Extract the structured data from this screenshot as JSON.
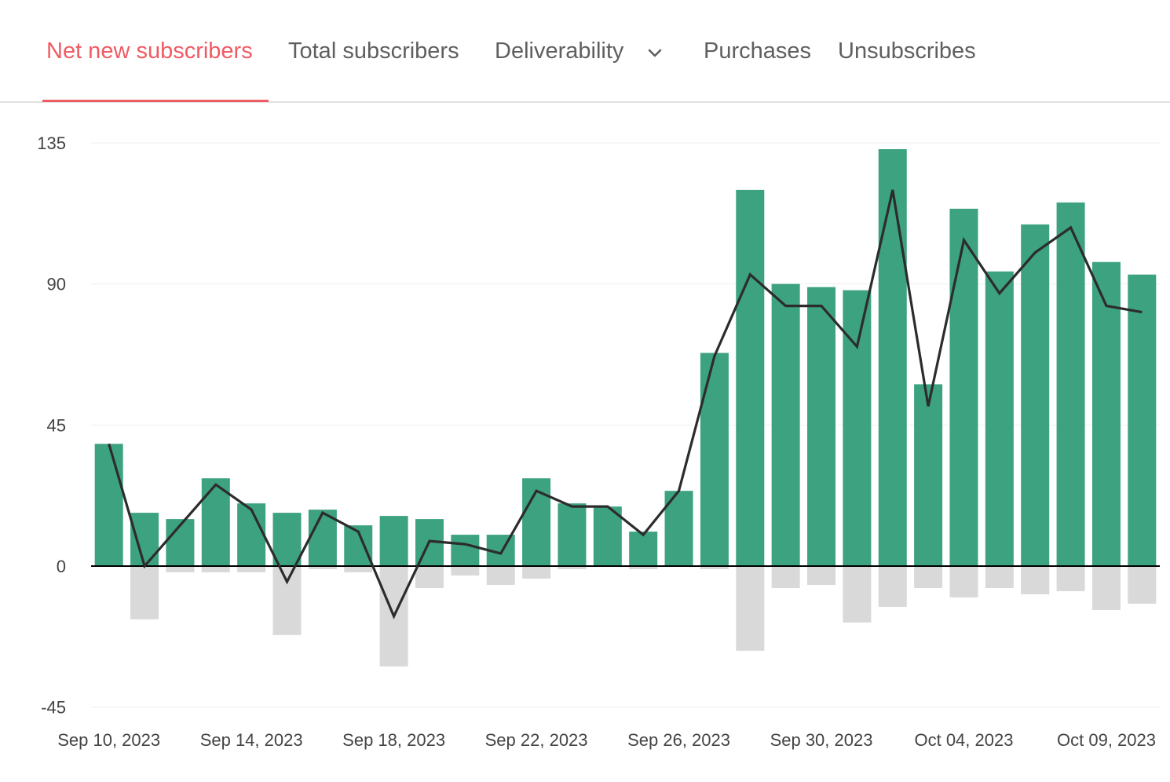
{
  "tabs": {
    "items": [
      {
        "label": "Net new subscribers",
        "active": true
      },
      {
        "label": "Total subscribers",
        "active": false
      },
      {
        "label": "Deliverability",
        "active": false,
        "has_dropdown": true
      },
      {
        "label": "Purchases",
        "active": false
      },
      {
        "label": "Unsubscribes",
        "active": false
      }
    ]
  },
  "colors": {
    "accent": "#ef5b63",
    "bar_positive": "#3da27f",
    "bar_negative": "#d9d9d9",
    "line": "#2c2c2c",
    "tab_text": "#5f5f5f",
    "grid": "#eeeeee",
    "axis": "#000000"
  },
  "chart_data": {
    "type": "bar",
    "ylim": [
      -45,
      135
    ],
    "yticks": [
      -45,
      0,
      45,
      90,
      135
    ],
    "xtick_labels": [
      "Sep 10, 2023",
      "Sep 14, 2023",
      "Sep 18, 2023",
      "Sep 22, 2023",
      "Sep 26, 2023",
      "Sep 30, 2023",
      "Oct 04, 2023",
      "Oct 09, 2023"
    ],
    "categories": [
      "2023-09-10",
      "2023-09-11",
      "2023-09-12",
      "2023-09-13",
      "2023-09-14",
      "2023-09-15",
      "2023-09-16",
      "2023-09-17",
      "2023-09-18",
      "2023-09-19",
      "2023-09-20",
      "2023-09-21",
      "2023-09-22",
      "2023-09-23",
      "2023-09-24",
      "2023-09-25",
      "2023-09-26",
      "2023-09-27",
      "2023-09-28",
      "2023-09-29",
      "2023-09-30",
      "2023-10-01",
      "2023-10-02",
      "2023-10-03",
      "2023-10-04",
      "2023-10-05",
      "2023-10-06",
      "2023-10-07",
      "2023-10-08",
      "2023-10-09"
    ],
    "series": [
      {
        "kind": "bar",
        "values": [
          39,
          17,
          15,
          28,
          20,
          17,
          18,
          13,
          16,
          15,
          10,
          10,
          28,
          20,
          19,
          11,
          24,
          68,
          120,
          90,
          89,
          88,
          133,
          58,
          114,
          94,
          109,
          116,
          97,
          93
        ]
      },
      {
        "kind": "bar",
        "values": [
          0,
          -17,
          -2,
          -2,
          -2,
          -22,
          -1,
          -2,
          -32,
          -7,
          -3,
          -6,
          -4,
          -1,
          0,
          -1,
          0,
          -1,
          -27,
          -7,
          -6,
          -18,
          -13,
          -7,
          -10,
          -7,
          -9,
          -8,
          -14,
          -12
        ]
      },
      {
        "kind": "line",
        "values": [
          39,
          0,
          13,
          26,
          18,
          -5,
          17,
          11,
          -16,
          8,
          7,
          4,
          24,
          19,
          19,
          10,
          24,
          67,
          93,
          83,
          83,
          70,
          120,
          51,
          104,
          87,
          100,
          108,
          83,
          81
        ]
      }
    ]
  }
}
